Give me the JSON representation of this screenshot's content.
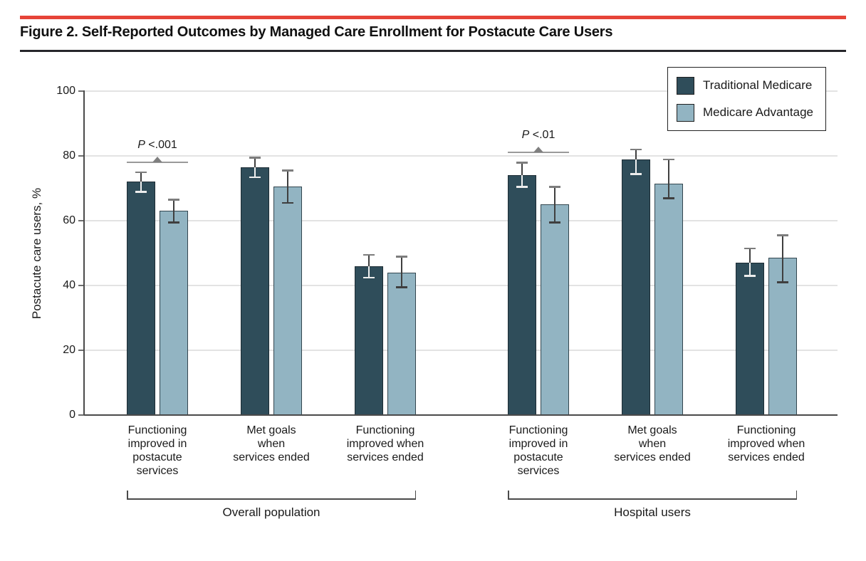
{
  "header": {
    "title": "Figure 2. Self-Reported Outcomes by Managed Care Enrollment for Postacute Care Users",
    "accent_color": "#e64438"
  },
  "chart_data": {
    "type": "bar",
    "title": "Figure 2. Self-Reported Outcomes by Managed Care Enrollment for Postacute Care Users",
    "ylabel": "Postacute care users, %",
    "xlabel": "",
    "ylim": [
      0,
      100
    ],
    "yticks": [
      0,
      20,
      40,
      60,
      80,
      100
    ],
    "grid": true,
    "legend_position": "top-right",
    "categories": [
      [
        "Functioning",
        "improved in",
        "postacute",
        "services"
      ],
      [
        "Met goals",
        "when",
        "services ended"
      ],
      [
        "Functioning",
        "improved when",
        "services ended"
      ],
      [
        "Functioning",
        "improved in",
        "postacute",
        "services"
      ],
      [
        "Met goals",
        "when",
        "services ended"
      ],
      [
        "Functioning",
        "improved when",
        "services ended"
      ]
    ],
    "sections": [
      {
        "label": "Overall population",
        "from": 0,
        "to": 2
      },
      {
        "label": "Hospital users",
        "from": 3,
        "to": 5
      }
    ],
    "series": [
      {
        "name": "Traditional Medicare",
        "color": "#2f4d5a",
        "border_color": "#1d2c34",
        "values": [
          72,
          76.5,
          46,
          74,
          79,
          47
        ],
        "ci_low": [
          69,
          73.5,
          42.5,
          70.5,
          74.5,
          43
        ],
        "ci_high": [
          75,
          79.5,
          49.5,
          78,
          82,
          51.5
        ]
      },
      {
        "name": "Medicare Advantage",
        "color": "#92b4c2",
        "border_color": "#33464f",
        "values": [
          63,
          70.5,
          44,
          65,
          71.5,
          48.5
        ],
        "ci_low": [
          59.5,
          65.5,
          39.5,
          59.5,
          67,
          41
        ],
        "ci_high": [
          66.5,
          75.5,
          49,
          70.5,
          79,
          55.5
        ]
      }
    ],
    "annotations": [
      {
        "label": "P <.001",
        "group_index": 0,
        "line_y": 78
      },
      {
        "label": "P <.01",
        "group_index": 3,
        "line_y": 81
      }
    ]
  }
}
